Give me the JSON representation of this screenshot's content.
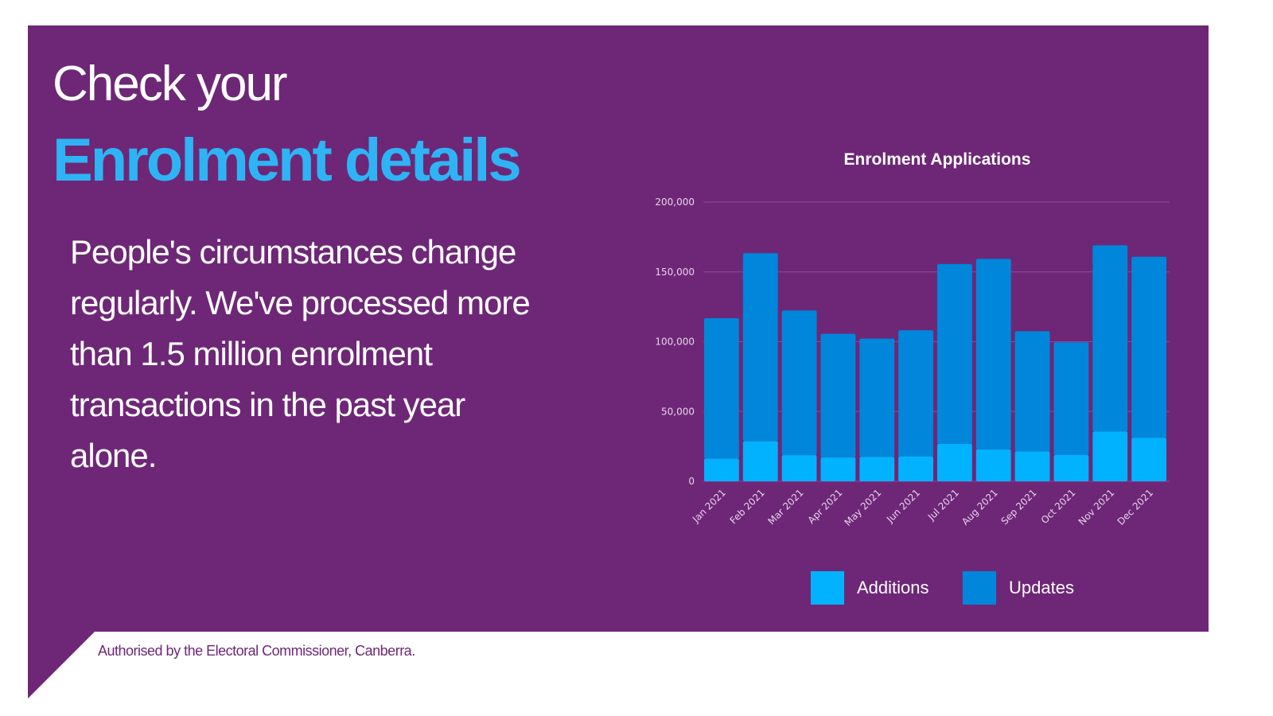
{
  "heading_line1": "Check your",
  "heading_line2": "Enrolment details",
  "body_text": "People's circumstances change regularly. We've processed more than 1.5 million enrolment transactions in the past year alone.",
  "footer": "Authorised by the Electoral Commissioner, Canberra.",
  "colors": {
    "background": "#6e2777",
    "accent": "#2eb4f5",
    "additions": "#00b2ff",
    "updates": "#0086da"
  },
  "chart_data": {
    "type": "bar",
    "stacked": true,
    "title": "Enrolment Applications",
    "categories": [
      "Jan 2021",
      "Feb 2021",
      "Mar 2021",
      "Apr 2021",
      "May 2021",
      "Jun 2021",
      "Jul 2021",
      "Aug 2021",
      "Sep 2021",
      "Oct 2021",
      "Nov 2021",
      "Dec 2021"
    ],
    "series": [
      {
        "name": "Additions",
        "color": "#00b2ff",
        "values": [
          16400,
          28700,
          18700,
          17200,
          17500,
          17900,
          26900,
          22900,
          21500,
          18800,
          35600,
          31300
        ]
      },
      {
        "name": "Updates",
        "color": "#0086da",
        "values": [
          100400,
          134700,
          103700,
          88400,
          84700,
          90300,
          128700,
          136400,
          86000,
          80800,
          133400,
          129500
        ]
      }
    ],
    "ylim": [
      0,
      200000
    ],
    "yticks": [
      "0",
      "50,000",
      "100,000",
      "150,000",
      "200,000"
    ],
    "grid": true,
    "legend": "bottom"
  }
}
